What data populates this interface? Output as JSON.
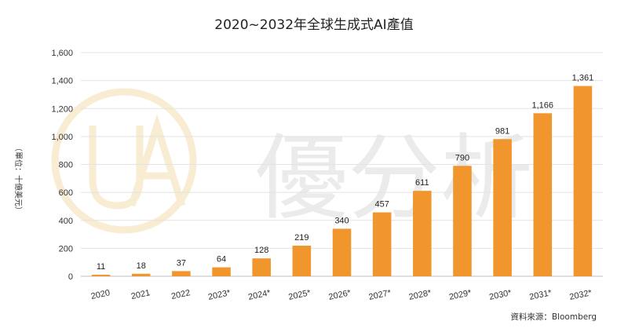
{
  "chart_data": {
    "type": "bar",
    "title": "2020~2032年全球生成式AI產值",
    "ylabel": "（單位：十億美元）",
    "categories": [
      "2020",
      "2021",
      "2022",
      "2023*",
      "2024*",
      "2025*",
      "2026*",
      "2027*",
      "2028*",
      "2029*",
      "2030*",
      "2031*",
      "2032*"
    ],
    "values": [
      11,
      18,
      37,
      64,
      128,
      219,
      340,
      457,
      611,
      790,
      981,
      1166,
      1361
    ],
    "data_labels": [
      "11",
      "18",
      "37",
      "64",
      "128",
      "219",
      "340",
      "457",
      "611",
      "790",
      "981",
      "1,166",
      "1,361"
    ],
    "yticks": [
      "0",
      "200",
      "400",
      "600",
      "800",
      "1,000",
      "1,200",
      "1,400",
      "1,600"
    ],
    "ylim": [
      0,
      1600
    ],
    "grid": true,
    "legend": "none",
    "bar_color": "#f0962c"
  },
  "source": "資料來源：Bloomberg",
  "watermark": {
    "logo_text": "UA",
    "text": "優分析",
    "color": "#f7e6bf"
  }
}
